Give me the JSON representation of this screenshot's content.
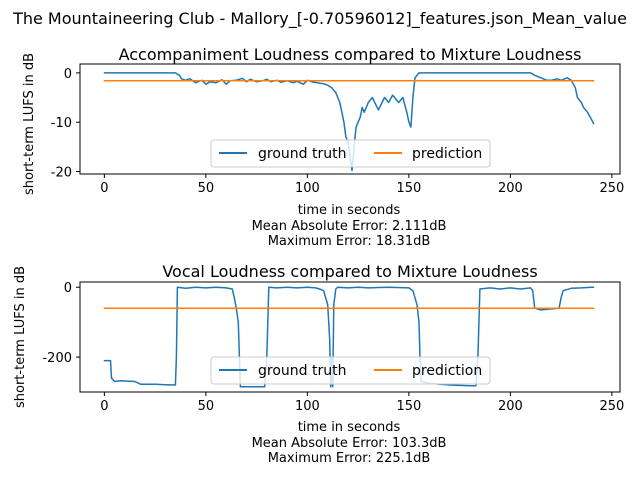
{
  "suptitle": "The Mountaineering Club - Mallory_[-0.70596012]_features.json_Mean_value",
  "chart_data": [
    {
      "type": "line",
      "title": "Accompaniment Loudness compared to Mixture Loudness",
      "xlabel": "time in seconds",
      "ylabel": "short-term LUFS in dB",
      "xlim": [
        -12,
        254
      ],
      "ylim": [
        -20.5,
        1.8
      ],
      "xticks": [
        0,
        50,
        100,
        150,
        200,
        250
      ],
      "yticks": [
        0,
        -10,
        -20
      ],
      "legend_position": "lower-center",
      "grid": false,
      "metrics": [
        "Mean Absolute Error: 2.111dB",
        "Maximum Error: 18.31dB"
      ],
      "series": [
        {
          "name": "ground truth",
          "color": "#1f77b4",
          "x": [
            0,
            10,
            20,
            30,
            35,
            37,
            38,
            40,
            42,
            45,
            48,
            50,
            52,
            55,
            58,
            60,
            62,
            65,
            68,
            70,
            72,
            75,
            78,
            80,
            82,
            85,
            87,
            90,
            93,
            95,
            98,
            100,
            103,
            105,
            108,
            110,
            112,
            114,
            116,
            117,
            118,
            119,
            120,
            121,
            122,
            123,
            124,
            125,
            126,
            127,
            128,
            130,
            132,
            135,
            138,
            140,
            142,
            145,
            147,
            149,
            150,
            151,
            152,
            153,
            155,
            160,
            170,
            180,
            190,
            200,
            210,
            212,
            215,
            218,
            220,
            223,
            225,
            228,
            230,
            232,
            233,
            235,
            236,
            238,
            240,
            241
          ],
          "y": [
            0,
            0,
            0,
            0,
            0,
            -0.5,
            -1.2,
            -1.5,
            -1.2,
            -2,
            -1.5,
            -2.3,
            -1.8,
            -2,
            -1.4,
            -2.3,
            -1.6,
            -1.5,
            -1.1,
            -1.8,
            -1.3,
            -1.8,
            -1.6,
            -1.3,
            -1.8,
            -1.5,
            -1.9,
            -1.6,
            -2,
            -1.7,
            -2.3,
            -1.5,
            -1.9,
            -2,
            -2.2,
            -2.5,
            -3,
            -4,
            -6,
            -8,
            -10,
            -13,
            -14,
            -17,
            -19.8,
            -15,
            -11,
            -10,
            -9,
            -7,
            -8,
            -6,
            -5,
            -7.5,
            -5,
            -6,
            -4.5,
            -6,
            -5,
            -8,
            -10,
            -11,
            -5,
            -1,
            0,
            0,
            0,
            0,
            0,
            0,
            0,
            -0.5,
            -1,
            -1.5,
            -1.5,
            -1.2,
            -1.5,
            -1,
            -1.5,
            -3,
            -5,
            -6,
            -7,
            -8,
            -9.5,
            -10.3
          ]
        },
        {
          "name": "prediction",
          "color": "#ff7f0e",
          "x": [
            0,
            241
          ],
          "y": [
            -1.6,
            -1.6
          ]
        }
      ]
    },
    {
      "type": "line",
      "title": "Vocal Loudness compared to Mixture Loudness",
      "xlabel": "time in seconds",
      "ylabel": "short-term LUFS in dB",
      "xlim": [
        -12,
        254
      ],
      "ylim": [
        -300,
        15
      ],
      "xticks": [
        0,
        50,
        100,
        150,
        200,
        250
      ],
      "yticks": [
        0,
        -200
      ],
      "legend_position": "lower-center",
      "grid": false,
      "metrics": [
        "Mean Absolute Error: 103.3dB",
        "Maximum Error: 225.1dB"
      ],
      "series": [
        {
          "name": "ground truth",
          "color": "#1f77b4",
          "x": [
            0,
            3,
            3.5,
            5,
            8,
            15,
            18,
            25,
            30,
            35,
            35.5,
            36,
            40,
            45,
            50,
            55,
            60,
            63,
            64,
            65,
            66,
            66.5,
            67,
            70,
            75,
            79,
            80,
            81,
            85,
            90,
            95,
            100,
            104,
            106,
            108,
            110,
            111,
            111.5,
            112,
            112.5,
            113,
            114,
            115,
            120,
            125,
            130,
            140,
            150,
            152,
            154,
            155,
            155.5,
            156,
            160,
            170,
            180,
            183,
            184,
            185,
            190,
            195,
            200,
            205,
            210,
            211,
            212,
            215,
            220,
            224,
            225,
            226,
            230,
            235,
            240,
            241
          ],
          "y": [
            -210,
            -210,
            -260,
            -270,
            -268,
            -270,
            -278,
            -278,
            -279,
            -280,
            -200,
            0,
            -3,
            0,
            -2,
            0,
            -2,
            -5,
            -30,
            -60,
            -100,
            -200,
            -285,
            -285,
            -285,
            -285,
            -200,
            0,
            -2,
            0,
            -2,
            0,
            -2,
            -5,
            -10,
            -50,
            -150,
            -285,
            -200,
            -285,
            -50,
            -5,
            0,
            -2,
            0,
            -2,
            0,
            -2,
            -10,
            -50,
            -100,
            -200,
            -270,
            -275,
            -280,
            -282,
            -282,
            -200,
            -5,
            -2,
            -5,
            -2,
            -5,
            -2,
            -10,
            -60,
            -65,
            -62,
            -60,
            -30,
            -10,
            -3,
            -2,
            0,
            0
          ]
        },
        {
          "name": "prediction",
          "color": "#ff7f0e",
          "x": [
            0,
            241
          ],
          "y": [
            -60,
            -60
          ]
        }
      ]
    }
  ]
}
